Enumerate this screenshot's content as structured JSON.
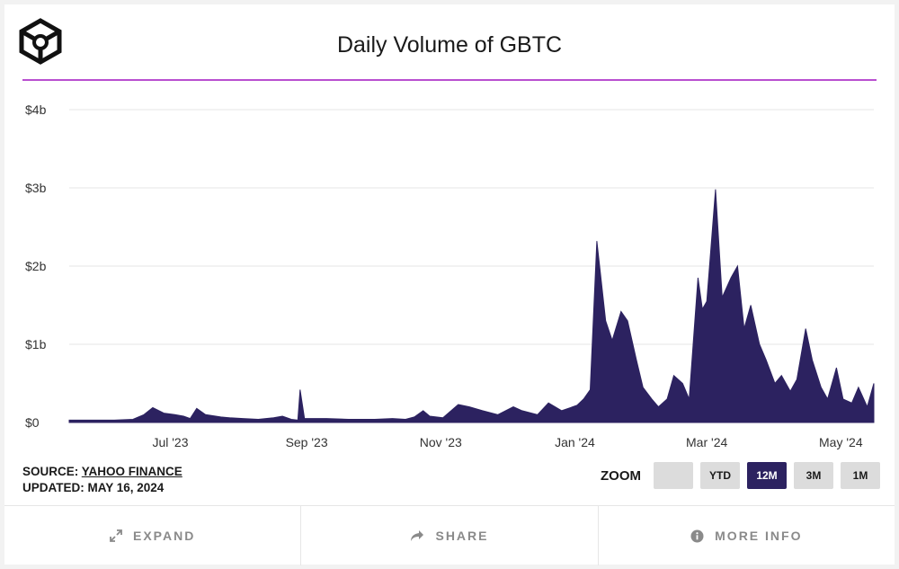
{
  "header": {
    "title": "Daily Volume of GBTC"
  },
  "source": {
    "label": "SOURCE: ",
    "link": "YAHOO FINANCE",
    "updated": "UPDATED: MAY 16, 2024"
  },
  "zoom": {
    "label": "ZOOM",
    "buttons": [
      "",
      "YTD",
      "12M",
      "3M",
      "1M"
    ],
    "active": "12M"
  },
  "footer": {
    "expand": "EXPAND",
    "share": "SHARE",
    "more_info": "MORE INFO"
  },
  "colors": {
    "series": "#2c2260",
    "accent_rule": "#b94fd0"
  },
  "chart_data": {
    "type": "area",
    "title": "Daily Volume of GBTC",
    "xlabel": "",
    "ylabel": "",
    "ylim": [
      0,
      4
    ],
    "yunit": "billions USD",
    "yticks": [
      0,
      1,
      2,
      3,
      4
    ],
    "ytick_labels": [
      "$0",
      "$1b",
      "$2b",
      "$3b",
      "$4b"
    ],
    "xlim": [
      "2023-05-16",
      "2024-05-16"
    ],
    "xticks": [
      "2023-07-01",
      "2023-09-01",
      "2023-11-01",
      "2024-01-01",
      "2024-03-01",
      "2024-05-01"
    ],
    "xtick_labels": [
      "Jul '23",
      "Sep '23",
      "Nov '23",
      "Jan '24",
      "Mar '24",
      "May '24"
    ],
    "grid": true,
    "series": [
      {
        "values": [
          [
            "2023-05-16",
            0.03
          ],
          [
            "2023-05-25",
            0.03
          ],
          [
            "2023-06-05",
            0.03
          ],
          [
            "2023-06-14",
            0.04
          ],
          [
            "2023-06-19",
            0.1
          ],
          [
            "2023-06-23",
            0.19
          ],
          [
            "2023-06-28",
            0.12
          ],
          [
            "2023-07-03",
            0.1
          ],
          [
            "2023-07-07",
            0.08
          ],
          [
            "2023-07-10",
            0.05
          ],
          [
            "2023-07-13",
            0.18
          ],
          [
            "2023-07-17",
            0.1
          ],
          [
            "2023-07-24",
            0.07
          ],
          [
            "2023-07-28",
            0.06
          ],
          [
            "2023-08-03",
            0.05
          ],
          [
            "2023-08-10",
            0.04
          ],
          [
            "2023-08-17",
            0.06
          ],
          [
            "2023-08-21",
            0.08
          ],
          [
            "2023-08-25",
            0.04
          ],
          [
            "2023-08-28",
            0.03
          ],
          [
            "2023-08-29",
            0.42
          ],
          [
            "2023-08-31",
            0.05
          ],
          [
            "2023-09-10",
            0.05
          ],
          [
            "2023-09-20",
            0.04
          ],
          [
            "2023-10-02",
            0.04
          ],
          [
            "2023-10-10",
            0.05
          ],
          [
            "2023-10-16",
            0.04
          ],
          [
            "2023-10-20",
            0.07
          ],
          [
            "2023-10-24",
            0.15
          ],
          [
            "2023-10-27",
            0.08
          ],
          [
            "2023-11-02",
            0.06
          ],
          [
            "2023-11-09",
            0.23
          ],
          [
            "2023-11-14",
            0.2
          ],
          [
            "2023-11-20",
            0.15
          ],
          [
            "2023-11-27",
            0.1
          ],
          [
            "2023-12-04",
            0.2
          ],
          [
            "2023-12-08",
            0.15
          ],
          [
            "2023-12-15",
            0.1
          ],
          [
            "2023-12-20",
            0.25
          ],
          [
            "2023-12-26",
            0.15
          ],
          [
            "2024-01-02",
            0.22
          ],
          [
            "2024-01-05",
            0.3
          ],
          [
            "2024-01-08",
            0.42
          ],
          [
            "2024-01-11",
            2.32
          ],
          [
            "2024-01-15",
            1.3
          ],
          [
            "2024-01-18",
            1.05
          ],
          [
            "2024-01-22",
            1.42
          ],
          [
            "2024-01-25",
            1.3
          ],
          [
            "2024-01-29",
            0.8
          ],
          [
            "2024-02-01",
            0.45
          ],
          [
            "2024-02-05",
            0.3
          ],
          [
            "2024-02-08",
            0.2
          ],
          [
            "2024-02-12",
            0.3
          ],
          [
            "2024-02-15",
            0.6
          ],
          [
            "2024-02-19",
            0.5
          ],
          [
            "2024-02-22",
            0.3
          ],
          [
            "2024-02-26",
            1.85
          ],
          [
            "2024-02-28",
            1.45
          ],
          [
            "2024-03-01",
            1.55
          ],
          [
            "2024-03-05",
            2.98
          ],
          [
            "2024-03-08",
            1.6
          ],
          [
            "2024-03-12",
            1.85
          ],
          [
            "2024-03-15",
            2.0
          ],
          [
            "2024-03-18",
            1.2
          ],
          [
            "2024-03-21",
            1.5
          ],
          [
            "2024-03-25",
            1.0
          ],
          [
            "2024-03-28",
            0.8
          ],
          [
            "2024-04-01",
            0.5
          ],
          [
            "2024-04-04",
            0.6
          ],
          [
            "2024-04-08",
            0.4
          ],
          [
            "2024-04-11",
            0.55
          ],
          [
            "2024-04-15",
            1.2
          ],
          [
            "2024-04-18",
            0.8
          ],
          [
            "2024-04-22",
            0.45
          ],
          [
            "2024-04-25",
            0.3
          ],
          [
            "2024-04-29",
            0.7
          ],
          [
            "2024-05-02",
            0.3
          ],
          [
            "2024-05-06",
            0.25
          ],
          [
            "2024-05-09",
            0.45
          ],
          [
            "2024-05-13",
            0.2
          ],
          [
            "2024-05-16",
            0.5
          ]
        ]
      }
    ]
  }
}
